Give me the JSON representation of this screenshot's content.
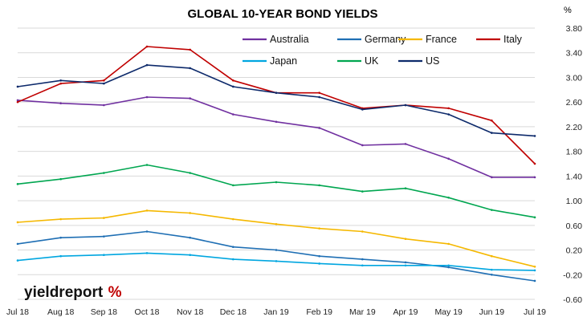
{
  "chart_data": {
    "type": "line",
    "title": "GLOBAL 10-YEAR BOND YIELDS",
    "unit": "%",
    "xlabel": "",
    "ylabel": "",
    "x": [
      "Jul 18",
      "Aug 18",
      "Sep 18",
      "Oct 18",
      "Nov 18",
      "Dec 18",
      "Jan 19",
      "Feb 19",
      "Mar 19",
      "Apr 19",
      "May 19",
      "Jun 19",
      "Jul 19"
    ],
    "x_tick_labels": [
      "Jul 18",
      "Aug 18",
      "Sep 18",
      "Oct 18",
      "Nov 18",
      "Dec 18",
      "Jan 19",
      "Feb 19",
      "Mar 19",
      "Apr 19",
      "May 19",
      "Jun 19",
      "Jul 19"
    ],
    "y_tick_labels": [
      "3.80",
      "3.40",
      "3.00",
      "2.60",
      "2.20",
      "1.80",
      "1.40",
      "1.00",
      "0.60",
      "0.20",
      "-0.20",
      "-0.60"
    ],
    "ylim": [
      -0.6,
      3.8
    ],
    "y_axis_position": "right",
    "grid": true,
    "legend_position": "top-right",
    "series": [
      {
        "name": "Australia",
        "color": "#7030a0",
        "values": [
          2.63,
          2.58,
          2.55,
          2.68,
          2.66,
          2.4,
          2.28,
          2.18,
          1.9,
          1.92,
          1.68,
          1.38,
          1.38
        ]
      },
      {
        "name": "Germany",
        "color": "#1f6fb4",
        "values": [
          0.3,
          0.4,
          0.42,
          0.5,
          0.4,
          0.25,
          0.2,
          0.1,
          0.05,
          0.0,
          -0.08,
          -0.2,
          -0.3
        ]
      },
      {
        "name": "France",
        "color": "#f5b800",
        "values": [
          0.65,
          0.7,
          0.72,
          0.84,
          0.8,
          0.7,
          0.62,
          0.55,
          0.5,
          0.38,
          0.3,
          0.1,
          -0.07
        ]
      },
      {
        "name": "Italy",
        "color": "#c00000",
        "values": [
          2.6,
          2.9,
          2.95,
          3.5,
          3.45,
          2.95,
          2.75,
          2.75,
          2.5,
          2.55,
          2.5,
          2.3,
          1.6
        ]
      },
      {
        "name": "Japan",
        "color": "#00a6e0",
        "values": [
          0.03,
          0.1,
          0.12,
          0.15,
          0.12,
          0.05,
          0.02,
          -0.02,
          -0.05,
          -0.05,
          -0.05,
          -0.12,
          -0.13
        ]
      },
      {
        "name": "UK",
        "color": "#00a650",
        "values": [
          1.27,
          1.35,
          1.45,
          1.58,
          1.45,
          1.25,
          1.3,
          1.25,
          1.15,
          1.2,
          1.05,
          0.85,
          0.73
        ]
      },
      {
        "name": "US",
        "color": "#0d2a6b",
        "values": [
          2.85,
          2.95,
          2.9,
          3.2,
          3.15,
          2.85,
          2.75,
          2.68,
          2.48,
          2.55,
          2.4,
          2.1,
          2.05
        ]
      }
    ]
  },
  "logo": {
    "text_main": "yieldreport",
    "text_symbol": "%"
  }
}
